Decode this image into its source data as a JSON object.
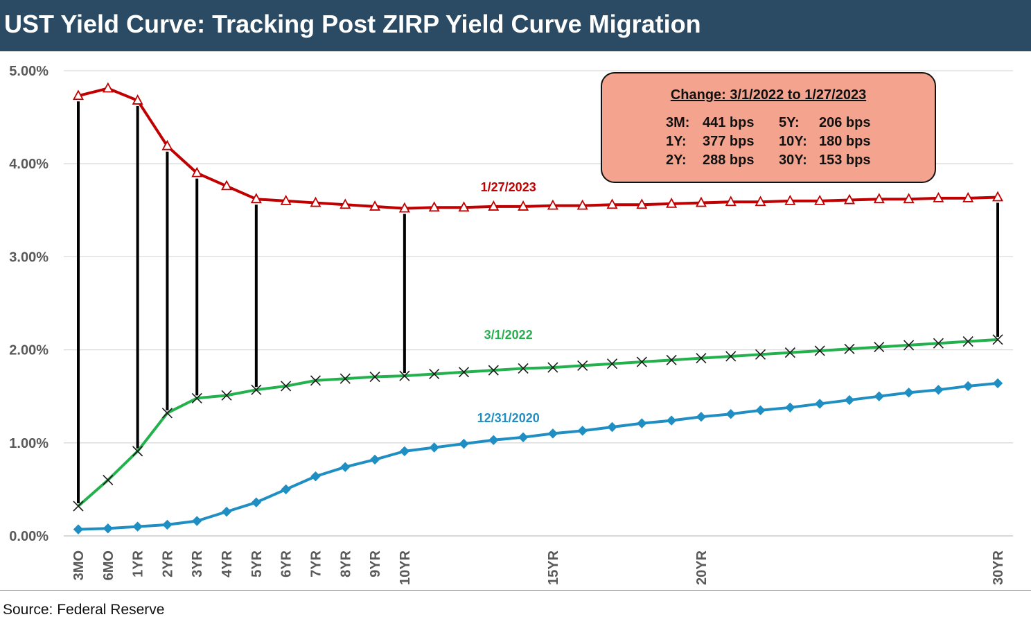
{
  "title": "UST Yield Curve: Tracking Post ZIRP Yield Curve Migration",
  "source": "Source: Federal Reserve",
  "callout": {
    "title": "Change: 3/1/2022 to 1/27/2023",
    "rows": [
      {
        "left_label": "3M:",
        "left_value": "441 bps",
        "right_label": "5Y:",
        "right_value": "206 bps"
      },
      {
        "left_label": "1Y:",
        "left_value": "377 bps",
        "right_label": "10Y:",
        "right_value": "180 bps"
      },
      {
        "left_label": "2Y:",
        "left_value": "288 bps",
        "right_label": "30Y:",
        "right_value": "153 bps"
      }
    ]
  },
  "chart_data": {
    "type": "line",
    "ylim": [
      0,
      5
    ],
    "y_ticks": [
      "0.00%",
      "1.00%",
      "2.00%",
      "3.00%",
      "4.00%",
      "5.00%"
    ],
    "x_ticks": [
      "3MO",
      "6MO",
      "1YR",
      "2YR",
      "3YR",
      "4YR",
      "5YR",
      "6YR",
      "7YR",
      "8YR",
      "9YR",
      "10YR",
      "15YR",
      "20YR",
      "30YR"
    ],
    "x_tick_positions": [
      0,
      1,
      2,
      3,
      4,
      5,
      6,
      7,
      8,
      9,
      10,
      11,
      16,
      21,
      31
    ],
    "grid": true,
    "series": [
      {
        "name": "1/27/2023",
        "color": "#c00000",
        "marker": "triangle",
        "values": [
          4.73,
          4.81,
          4.68,
          4.19,
          3.9,
          3.76,
          3.62,
          3.6,
          3.58,
          3.56,
          3.54,
          3.52,
          3.53,
          3.53,
          3.54,
          3.54,
          3.55,
          3.55,
          3.56,
          3.56,
          3.57,
          3.58,
          3.59,
          3.59,
          3.6,
          3.6,
          3.61,
          3.62,
          3.62,
          3.63,
          3.63,
          3.64
        ]
      },
      {
        "name": "3/1/2022",
        "color": "#22b14c",
        "marker": "x",
        "values": [
          0.32,
          0.6,
          0.91,
          1.32,
          1.48,
          1.51,
          1.57,
          1.61,
          1.67,
          1.69,
          1.71,
          1.72,
          1.74,
          1.76,
          1.78,
          1.8,
          1.81,
          1.83,
          1.85,
          1.87,
          1.89,
          1.91,
          1.93,
          1.95,
          1.97,
          1.99,
          2.01,
          2.03,
          2.05,
          2.07,
          2.09,
          2.11
        ]
      },
      {
        "name": "12/31/2020",
        "color": "#1f8ec2",
        "marker": "diamond",
        "values": [
          0.07,
          0.08,
          0.1,
          0.12,
          0.16,
          0.26,
          0.36,
          0.5,
          0.64,
          0.74,
          0.82,
          0.91,
          0.95,
          0.99,
          1.03,
          1.06,
          1.1,
          1.13,
          1.17,
          1.21,
          1.24,
          1.28,
          1.31,
          1.35,
          1.38,
          1.42,
          1.46,
          1.5,
          1.54,
          1.57,
          1.61,
          1.64
        ]
      }
    ],
    "change_lines_at": [
      0,
      2,
      3,
      4,
      6,
      11,
      31
    ]
  }
}
